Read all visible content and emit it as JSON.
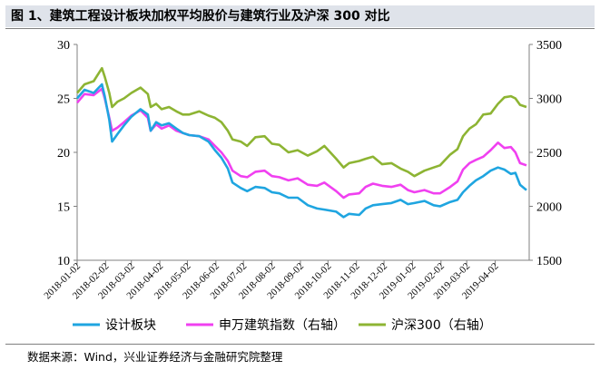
{
  "title": "图 1、建筑工程设计板块加权平均股价与建筑行业及沪深 300 对比",
  "source": "数据来源：Wind，兴业证券经济与金融研究院整理",
  "chart_data": {
    "type": "line",
    "left_axis": {
      "min": 10,
      "max": 30,
      "ticks": [
        "10",
        "15",
        "20",
        "25",
        "30"
      ]
    },
    "right_axis": {
      "min": 1500,
      "max": 3500,
      "ticks": [
        "1500",
        "2000",
        "2500",
        "3000",
        "3500"
      ]
    },
    "x_ticks": [
      "2018-01-02",
      "2018-02-02",
      "2018-03-02",
      "2018-04-02",
      "2018-05-02",
      "2018-06-02",
      "2018-07-02",
      "2018-08-02",
      "2018-09-02",
      "2018-10-02",
      "2018-11-02",
      "2018-12-02",
      "2019-01-02",
      "2019-02-02",
      "2019-03-02",
      "2019-04-02"
    ],
    "series": [
      {
        "name": "设计板块",
        "axis": "left",
        "color": "#1fa5e0",
        "points": [
          [
            "2018-01-02",
            25.0
          ],
          [
            "2018-01-10",
            25.8
          ],
          [
            "2018-01-20",
            25.5
          ],
          [
            "2018-01-29",
            26.3
          ],
          [
            "2018-02-01",
            25.2
          ],
          [
            "2018-02-06",
            23.0
          ],
          [
            "2018-02-09",
            21.0
          ],
          [
            "2018-02-15",
            21.7
          ],
          [
            "2018-02-22",
            22.5
          ],
          [
            "2018-03-02",
            23.3
          ],
          [
            "2018-03-12",
            24.0
          ],
          [
            "2018-03-20",
            23.5
          ],
          [
            "2018-03-23",
            22.0
          ],
          [
            "2018-03-29",
            22.8
          ],
          [
            "2018-04-04",
            22.5
          ],
          [
            "2018-04-12",
            22.7
          ],
          [
            "2018-04-20",
            22.2
          ],
          [
            "2018-04-27",
            21.8
          ],
          [
            "2018-05-04",
            21.6
          ],
          [
            "2018-05-15",
            21.5
          ],
          [
            "2018-05-25",
            21.0
          ],
          [
            "2018-06-01",
            20.2
          ],
          [
            "2018-06-08",
            19.5
          ],
          [
            "2018-06-15",
            18.5
          ],
          [
            "2018-06-20",
            17.2
          ],
          [
            "2018-06-29",
            16.7
          ],
          [
            "2018-07-06",
            16.4
          ],
          [
            "2018-07-15",
            16.8
          ],
          [
            "2018-07-25",
            16.7
          ],
          [
            "2018-08-02",
            16.3
          ],
          [
            "2018-08-10",
            16.2
          ],
          [
            "2018-08-20",
            15.8
          ],
          [
            "2018-08-30",
            15.8
          ],
          [
            "2018-09-10",
            15.1
          ],
          [
            "2018-09-20",
            14.8
          ],
          [
            "2018-09-28",
            14.7
          ],
          [
            "2018-10-11",
            14.5
          ],
          [
            "2018-10-19",
            14.0
          ],
          [
            "2018-10-25",
            14.3
          ],
          [
            "2018-11-05",
            14.2
          ],
          [
            "2018-11-12",
            14.8
          ],
          [
            "2018-11-20",
            15.1
          ],
          [
            "2018-11-30",
            15.2
          ],
          [
            "2018-12-10",
            15.3
          ],
          [
            "2018-12-20",
            15.6
          ],
          [
            "2018-12-28",
            15.2
          ],
          [
            "2019-01-04",
            15.3
          ],
          [
            "2019-01-15",
            15.5
          ],
          [
            "2019-01-25",
            15.1
          ],
          [
            "2019-02-01",
            15.0
          ],
          [
            "2019-02-12",
            15.4
          ],
          [
            "2019-02-20",
            15.6
          ],
          [
            "2019-02-26",
            16.3
          ],
          [
            "2019-03-05",
            16.9
          ],
          [
            "2019-03-12",
            17.4
          ],
          [
            "2019-03-20",
            17.8
          ],
          [
            "2019-03-28",
            18.3
          ],
          [
            "2019-04-05",
            18.6
          ],
          [
            "2019-04-12",
            18.4
          ],
          [
            "2019-04-19",
            18.0
          ],
          [
            "2019-04-24",
            18.1
          ],
          [
            "2019-04-29",
            17.0
          ],
          [
            "2019-05-06",
            16.5
          ]
        ]
      },
      {
        "name": "申万建筑指数（右轴）",
        "axis": "right",
        "color": "#f040f0",
        "points": [
          [
            "2018-01-02",
            2960
          ],
          [
            "2018-01-10",
            3040
          ],
          [
            "2018-01-20",
            3030
          ],
          [
            "2018-01-29",
            3090
          ],
          [
            "2018-02-01",
            3000
          ],
          [
            "2018-02-06",
            2820
          ],
          [
            "2018-02-09",
            2700
          ],
          [
            "2018-02-15",
            2730
          ],
          [
            "2018-02-22",
            2780
          ],
          [
            "2018-03-02",
            2840
          ],
          [
            "2018-03-12",
            2890
          ],
          [
            "2018-03-20",
            2820
          ],
          [
            "2018-03-23",
            2700
          ],
          [
            "2018-03-29",
            2760
          ],
          [
            "2018-04-04",
            2720
          ],
          [
            "2018-04-12",
            2750
          ],
          [
            "2018-04-20",
            2700
          ],
          [
            "2018-04-27",
            2680
          ],
          [
            "2018-05-04",
            2660
          ],
          [
            "2018-05-15",
            2650
          ],
          [
            "2018-05-25",
            2620
          ],
          [
            "2018-06-01",
            2560
          ],
          [
            "2018-06-08",
            2500
          ],
          [
            "2018-06-15",
            2420
          ],
          [
            "2018-06-20",
            2330
          ],
          [
            "2018-06-29",
            2280
          ],
          [
            "2018-07-06",
            2270
          ],
          [
            "2018-07-15",
            2320
          ],
          [
            "2018-07-25",
            2330
          ],
          [
            "2018-08-02",
            2280
          ],
          [
            "2018-08-10",
            2270
          ],
          [
            "2018-08-20",
            2240
          ],
          [
            "2018-08-30",
            2260
          ],
          [
            "2018-09-10",
            2200
          ],
          [
            "2018-09-20",
            2190
          ],
          [
            "2018-09-28",
            2220
          ],
          [
            "2018-10-11",
            2140
          ],
          [
            "2018-10-19",
            2080
          ],
          [
            "2018-10-25",
            2110
          ],
          [
            "2018-11-05",
            2120
          ],
          [
            "2018-11-12",
            2180
          ],
          [
            "2018-11-20",
            2210
          ],
          [
            "2018-11-30",
            2190
          ],
          [
            "2018-12-10",
            2180
          ],
          [
            "2018-12-20",
            2200
          ],
          [
            "2018-12-28",
            2150
          ],
          [
            "2019-01-04",
            2130
          ],
          [
            "2019-01-15",
            2150
          ],
          [
            "2019-01-25",
            2120
          ],
          [
            "2019-02-01",
            2120
          ],
          [
            "2019-02-12",
            2180
          ],
          [
            "2019-02-20",
            2230
          ],
          [
            "2019-02-26",
            2340
          ],
          [
            "2019-03-05",
            2400
          ],
          [
            "2019-03-12",
            2430
          ],
          [
            "2019-03-20",
            2460
          ],
          [
            "2019-03-28",
            2520
          ],
          [
            "2019-04-05",
            2590
          ],
          [
            "2019-04-12",
            2540
          ],
          [
            "2019-04-19",
            2550
          ],
          [
            "2019-04-24",
            2500
          ],
          [
            "2019-04-29",
            2400
          ],
          [
            "2019-05-06",
            2380
          ]
        ]
      },
      {
        "name": "沪深300（右轴）",
        "axis": "right",
        "color": "#8db433",
        "points": [
          [
            "2018-01-02",
            3050
          ],
          [
            "2018-01-10",
            3130
          ],
          [
            "2018-01-20",
            3160
          ],
          [
            "2018-01-29",
            3280
          ],
          [
            "2018-02-01",
            3200
          ],
          [
            "2018-02-06",
            3050
          ],
          [
            "2018-02-09",
            2920
          ],
          [
            "2018-02-15",
            2970
          ],
          [
            "2018-02-22",
            3000
          ],
          [
            "2018-03-02",
            3050
          ],
          [
            "2018-03-12",
            3100
          ],
          [
            "2018-03-20",
            3040
          ],
          [
            "2018-03-23",
            2920
          ],
          [
            "2018-03-29",
            2950
          ],
          [
            "2018-04-04",
            2900
          ],
          [
            "2018-04-12",
            2920
          ],
          [
            "2018-04-20",
            2880
          ],
          [
            "2018-04-27",
            2850
          ],
          [
            "2018-05-04",
            2850
          ],
          [
            "2018-05-15",
            2880
          ],
          [
            "2018-05-25",
            2840
          ],
          [
            "2018-06-01",
            2820
          ],
          [
            "2018-06-08",
            2780
          ],
          [
            "2018-06-15",
            2700
          ],
          [
            "2018-06-20",
            2620
          ],
          [
            "2018-06-29",
            2600
          ],
          [
            "2018-07-06",
            2560
          ],
          [
            "2018-07-15",
            2640
          ],
          [
            "2018-07-25",
            2650
          ],
          [
            "2018-08-02",
            2580
          ],
          [
            "2018-08-10",
            2570
          ],
          [
            "2018-08-20",
            2500
          ],
          [
            "2018-08-30",
            2520
          ],
          [
            "2018-09-10",
            2470
          ],
          [
            "2018-09-20",
            2510
          ],
          [
            "2018-09-28",
            2560
          ],
          [
            "2018-10-11",
            2440
          ],
          [
            "2018-10-19",
            2360
          ],
          [
            "2018-10-25",
            2400
          ],
          [
            "2018-11-05",
            2420
          ],
          [
            "2018-11-12",
            2440
          ],
          [
            "2018-11-20",
            2460
          ],
          [
            "2018-11-30",
            2390
          ],
          [
            "2018-12-10",
            2400
          ],
          [
            "2018-12-20",
            2350
          ],
          [
            "2018-12-28",
            2320
          ],
          [
            "2019-01-04",
            2280
          ],
          [
            "2019-01-15",
            2330
          ],
          [
            "2019-01-25",
            2360
          ],
          [
            "2019-02-01",
            2380
          ],
          [
            "2019-02-12",
            2480
          ],
          [
            "2019-02-20",
            2530
          ],
          [
            "2019-02-26",
            2650
          ],
          [
            "2019-03-05",
            2720
          ],
          [
            "2019-03-12",
            2760
          ],
          [
            "2019-03-20",
            2850
          ],
          [
            "2019-03-28",
            2860
          ],
          [
            "2019-04-05",
            2950
          ],
          [
            "2019-04-12",
            3010
          ],
          [
            "2019-04-19",
            3020
          ],
          [
            "2019-04-24",
            3000
          ],
          [
            "2019-04-29",
            2940
          ],
          [
            "2019-05-06",
            2920
          ]
        ]
      }
    ],
    "legend_placement": "bottom",
    "grid": false
  }
}
